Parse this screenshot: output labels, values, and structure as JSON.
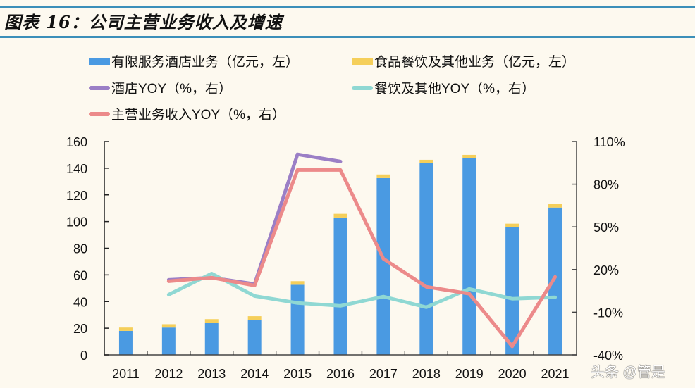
{
  "title": "图表 16：公司主营业务收入及增速",
  "watermark": "头条 @管是",
  "colors": {
    "hotel_bar": "#4a9ae2",
    "food_bar": "#f5cf5a",
    "hotel_yoy": "#9b7fc6",
    "food_yoy": "#8fd8d3",
    "main_yoy": "#ec8a8a",
    "rule": "#3c8fb9"
  },
  "chart_data": {
    "type": "bar+line",
    "title": "图表 16：公司主营业务收入及增速",
    "categories": [
      "2011",
      "2012",
      "2013",
      "2014",
      "2015",
      "2016",
      "2017",
      "2018",
      "2019",
      "2020",
      "2021"
    ],
    "left_axis": {
      "ylim": [
        0,
        160
      ],
      "ticks": [
        "0",
        "20",
        "40",
        "60",
        "80",
        "100",
        "120",
        "140",
        "160"
      ],
      "unit": "亿元"
    },
    "right_axis": {
      "ylim": [
        -40,
        110
      ],
      "ticks": [
        "-40%",
        "-10%",
        "20%",
        "50%",
        "80%",
        "110%"
      ],
      "unit": "%"
    },
    "legend_placement": "top",
    "grid": false,
    "bar_series": [
      {
        "name": "有限服务酒店业务（亿元，左）",
        "axis": "left",
        "stacked": true,
        "values": [
          18,
          20.5,
          24,
          26.3,
          52.6,
          103,
          132.6,
          143.7,
          147.4,
          95.8,
          110.5
        ]
      },
      {
        "name": "食品餐饮及其他业务（亿元，左）",
        "axis": "left",
        "stacked": true,
        "values": [
          2.5,
          2.5,
          2.8,
          2.7,
          2.7,
          2.8,
          2.7,
          2.6,
          2.6,
          2.6,
          2.5
        ]
      }
    ],
    "line_series": [
      {
        "name": "酒店YOY（%，右）",
        "axis": "right",
        "values": [
          null,
          12.8,
          14.3,
          9.8,
          101,
          96,
          null,
          null,
          null,
          null,
          null
        ]
      },
      {
        "name": "餐饮及其他YOY（%，右）",
        "axis": "right",
        "values": [
          null,
          2.4,
          17.2,
          1.4,
          -3.5,
          -5.5,
          1,
          -6.5,
          6.4,
          -0.5,
          0.5
        ]
      },
      {
        "name": "主营业务收入YOY（%，右）",
        "axis": "right",
        "values": [
          null,
          11.8,
          14.3,
          8.8,
          90,
          90,
          27.6,
          7.9,
          3,
          -34,
          14.8
        ]
      }
    ]
  },
  "legend": [
    {
      "label": "有限服务酒店业务（亿元，左）",
      "kind": "bar"
    },
    {
      "label": "食品餐饮及其他业务（亿元，左）",
      "kind": "bar"
    },
    {
      "label": "酒店YOY（%，右）",
      "kind": "line"
    },
    {
      "label": "餐饮及其他YOY（%，右）",
      "kind": "line"
    },
    {
      "label": "主营业务收入YOY（%，右）",
      "kind": "line"
    }
  ]
}
